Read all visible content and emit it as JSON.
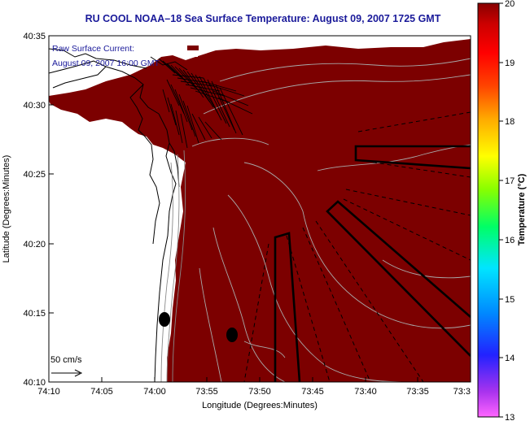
{
  "header": {
    "title": "RU COOL  NOAA–18  Sea Surface Temperature:  August 09, 2007 1725 GMT"
  },
  "map": {
    "overlay_line1": "Raw Surface Current:",
    "overlay_line2": "August 09, 2007 16:00 GMT",
    "scale_label": "50 cm/s",
    "x_axis_label": "Longitude (Degrees:Minutes)",
    "y_axis_label": "Latitude (Degrees:Minutes)",
    "x_ticks": [
      "74:10",
      "74:05",
      "74:00",
      "73:55",
      "73:50",
      "73:45",
      "73:40",
      "73:35",
      "73:3"
    ],
    "y_ticks": [
      "40:35",
      "40:30",
      "40:25",
      "40:20",
      "40:15",
      "40:10"
    ],
    "sst_color": "#7c0000",
    "land_color": "#ffffff"
  },
  "colorbar": {
    "label": "Temperature (°C)",
    "ticks": [
      "20",
      "19",
      "18",
      "17",
      "16",
      "15",
      "14",
      "13"
    ]
  }
}
